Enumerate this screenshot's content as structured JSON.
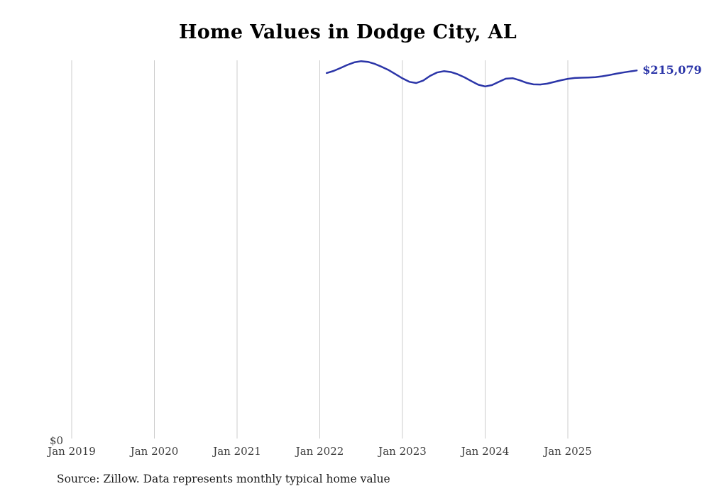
{
  "title": "Home Values in Dodge City, AL",
  "source_note": "Source: Zillow. Data represents monthly typical home value",
  "y_zero_label": "$0",
  "end_value_label": "$215,079",
  "colors": {
    "line": "#2b35a8",
    "gridline": "#cccccc",
    "title": "#000000",
    "tick": "#3d3d3d"
  },
  "chart_data": {
    "type": "line",
    "title": "Home Values in Dodge City, AL",
    "xlabel": "",
    "ylabel": "",
    "ylim": [
      0,
      221000
    ],
    "grid": "vertical-only",
    "legend": "none",
    "x_ticks": [
      "Jan 2019",
      "Jan 2020",
      "Jan 2021",
      "Jan 2022",
      "Jan 2023",
      "Jan 2024",
      "Jan 2025"
    ],
    "series_name": "Monthly typical home value ($)",
    "x": [
      "2022-02",
      "2022-03",
      "2022-04",
      "2022-05",
      "2022-06",
      "2022-07",
      "2022-08",
      "2022-09",
      "2022-10",
      "2022-11",
      "2022-12",
      "2023-01",
      "2023-02",
      "2023-03",
      "2023-04",
      "2023-05",
      "2023-06",
      "2023-07",
      "2023-08",
      "2023-09",
      "2023-10",
      "2023-11",
      "2023-12",
      "2024-01",
      "2024-02",
      "2024-03",
      "2024-04",
      "2024-05",
      "2024-06",
      "2024-07",
      "2024-08",
      "2024-09",
      "2024-10",
      "2024-11",
      "2024-12",
      "2025-01",
      "2025-02",
      "2025-03",
      "2025-04",
      "2025-05",
      "2025-06",
      "2025-07",
      "2025-08",
      "2025-09",
      "2025-10",
      "2025-11"
    ],
    "values": [
      213600,
      214800,
      216500,
      218300,
      219800,
      220500,
      220100,
      218900,
      217200,
      215300,
      212900,
      210500,
      208500,
      207800,
      209200,
      211900,
      213900,
      214700,
      214200,
      212900,
      211100,
      208900,
      206800,
      205800,
      206600,
      208500,
      210300,
      210600,
      209400,
      207900,
      207000,
      206900,
      207400,
      208400,
      209400,
      210200,
      210700,
      210900,
      211000,
      211200,
      211700,
      212400,
      213200,
      213900,
      214500,
      215079
    ],
    "end_value": 215079
  }
}
